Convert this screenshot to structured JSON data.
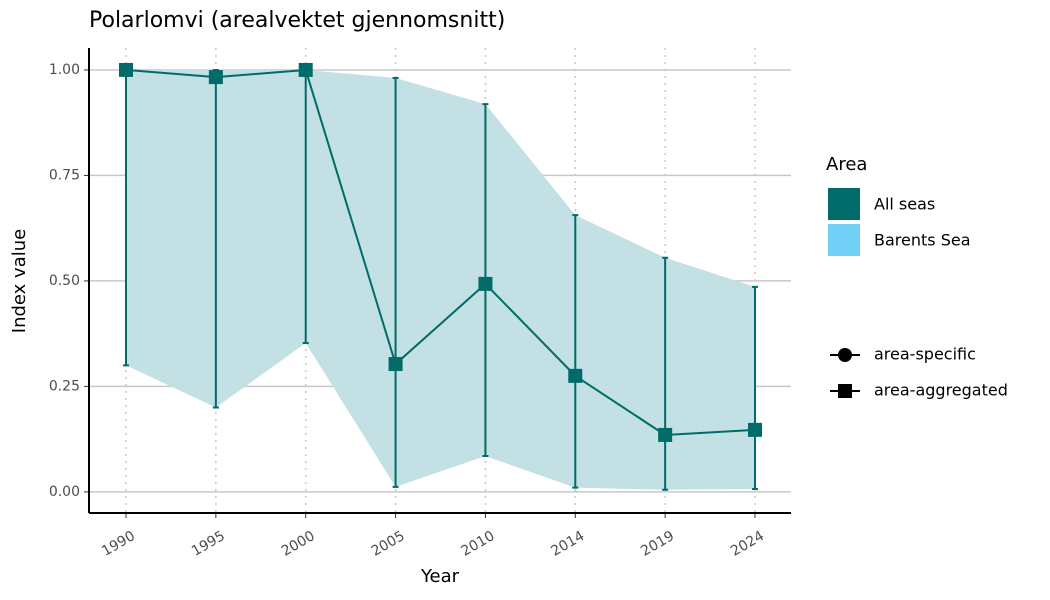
{
  "chart_data": {
    "type": "line",
    "title": "Polarlomvi (arealvektet gjennomsnitt)",
    "x_label": "Year",
    "y_label": "Index value",
    "categories": [
      "1990",
      "1995",
      "2000",
      "2005",
      "2010",
      "2014",
      "2019",
      "2024"
    ],
    "series": [
      {
        "name": "All seas",
        "color": "#006b68",
        "ribbon_color": "#c3e0e4",
        "values": [
          1.0,
          0.983,
          1.0,
          0.303,
          0.493,
          0.275,
          0.135,
          0.147
        ],
        "lower": [
          0.3,
          0.2,
          0.353,
          0.012,
          0.085,
          0.01,
          0.005,
          0.007
        ],
        "upper": [
          1.0,
          1.0,
          1.0,
          0.981,
          0.919,
          0.656,
          0.555,
          0.486
        ]
      }
    ],
    "legend": {
      "title": "Area",
      "entries": [
        {
          "name": "All seas",
          "color": "#006b68"
        },
        {
          "name": "Barents Sea",
          "color": "#72d0f6"
        }
      ]
    },
    "shape_legend": [
      {
        "label": "area-specific",
        "shape": "circle"
      },
      {
        "label": "area-aggregated",
        "shape": "square"
      }
    ],
    "ylim": [
      -0.05,
      1.052
    ],
    "yticks": [
      {
        "value": 0,
        "label": "0.00"
      },
      {
        "value": 0.25,
        "label": "0.25"
      },
      {
        "value": 0.5,
        "label": "0.50"
      },
      {
        "value": 0.75,
        "label": "0.75"
      },
      {
        "value": 1,
        "label": "1.00"
      }
    ],
    "grid": true
  }
}
